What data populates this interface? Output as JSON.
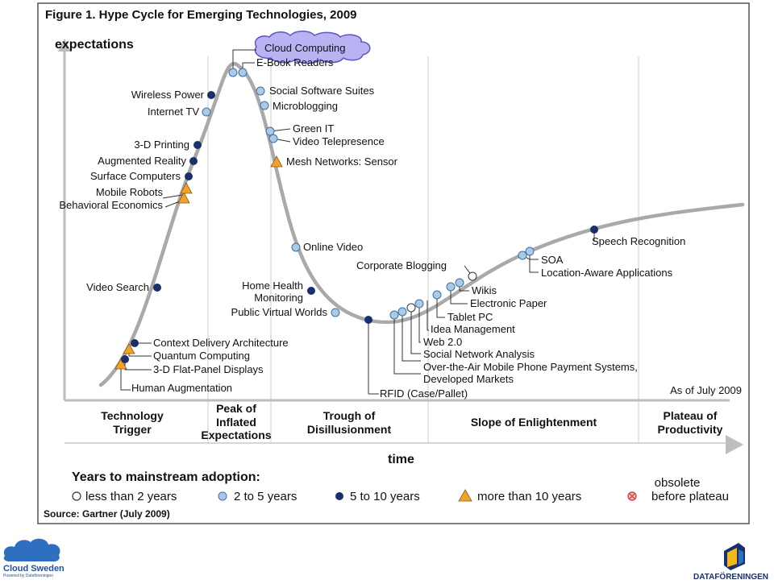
{
  "figure": {
    "title": "Figure 1. Hype Cycle for Emerging Technologies, 2009",
    "y_axis": "expectations",
    "x_axis": "time",
    "as_of": "As of July 2009",
    "source": "Source: Gartner (July 2009)"
  },
  "phases": [
    {
      "lines": [
        "Technology",
        "Trigger"
      ]
    },
    {
      "lines": [
        "Peak of",
        "Inflated",
        "Expectations"
      ]
    },
    {
      "lines": [
        "Trough of",
        "Disillusionment"
      ]
    },
    {
      "lines": [
        "Slope of Enlightenment"
      ]
    },
    {
      "lines": [
        "Plateau of",
        "Productivity"
      ]
    }
  ],
  "legend": {
    "heading": "Years to mainstream adoption:",
    "items": [
      {
        "label": "less than 2 years",
        "marker": "white-circle"
      },
      {
        "label": "2 to 5 years",
        "marker": "light-blue-circle"
      },
      {
        "label": "5 to 10 years",
        "marker": "dark-blue-circle"
      },
      {
        "label": "more than 10 years",
        "marker": "orange-triangle"
      },
      {
        "label_lines": [
          "obsolete",
          "before plateau"
        ],
        "marker": "crossed-circle"
      }
    ]
  },
  "technologies": [
    {
      "name": "Human Augmentation",
      "marker": "orange-triangle"
    },
    {
      "name": "3-D Flat-Panel Displays",
      "marker": "dark-blue-circle"
    },
    {
      "name": "Quantum Computing",
      "marker": "orange-triangle"
    },
    {
      "name": "Context Delivery Architecture",
      "marker": "dark-blue-circle"
    },
    {
      "name": "Video Search",
      "marker": "dark-blue-circle"
    },
    {
      "name": "Behavioral Economics",
      "marker": "orange-triangle"
    },
    {
      "name": "Mobile Robots",
      "marker": "orange-triangle"
    },
    {
      "name": "Surface Computers",
      "marker": "dark-blue-circle"
    },
    {
      "name": "Augmented Reality",
      "marker": "dark-blue-circle"
    },
    {
      "name": "3-D Printing",
      "marker": "dark-blue-circle"
    },
    {
      "name": "Internet TV",
      "marker": "light-blue-circle"
    },
    {
      "name": "Wireless Power",
      "marker": "dark-blue-circle"
    },
    {
      "name": "E-Book Readers",
      "marker": "light-blue-circle"
    },
    {
      "name": "Cloud Computing",
      "marker": "light-blue-circle"
    },
    {
      "name": "Social Software Suites",
      "marker": "light-blue-circle"
    },
    {
      "name": "Microblogging",
      "marker": "light-blue-circle"
    },
    {
      "name": "Green IT",
      "marker": "light-blue-circle"
    },
    {
      "name": "Video Telepresence",
      "marker": "light-blue-circle"
    },
    {
      "name": "Mesh Networks: Sensor",
      "marker": "orange-triangle"
    },
    {
      "name": "Online Video",
      "marker": "light-blue-circle"
    },
    {
      "name_lines": [
        "Home Health",
        "Monitoring"
      ],
      "marker": "dark-blue-circle"
    },
    {
      "name": "Public Virtual Worlds",
      "marker": "light-blue-circle"
    },
    {
      "name": "RFID (Case/Pallet)",
      "marker": "dark-blue-circle"
    },
    {
      "name_lines": [
        "Over-the-Air Mobile Phone Payment Systems,",
        "Developed Markets"
      ],
      "marker": "light-blue-circle"
    },
    {
      "name": "Social Network Analysis",
      "marker": "light-blue-circle"
    },
    {
      "name": "Web 2.0",
      "marker": "white-circle"
    },
    {
      "name": "Idea Management",
      "marker": "light-blue-circle"
    },
    {
      "name": "Tablet PC",
      "marker": "light-blue-circle"
    },
    {
      "name": "Electronic Paper",
      "marker": "light-blue-circle"
    },
    {
      "name": "Wikis",
      "marker": "light-blue-circle"
    },
    {
      "name": "Corporate Blogging",
      "marker": "white-circle"
    },
    {
      "name": "SOA",
      "marker": "light-blue-circle"
    },
    {
      "name": "Location-Aware Applications",
      "marker": "light-blue-circle"
    },
    {
      "name": "Speech Recognition",
      "marker": "dark-blue-circle"
    }
  ],
  "logos": {
    "left": {
      "name": "Cloud Sweden",
      "tagline": "Powered by Dataföreningen"
    },
    "right": {
      "name": "DATAFÖRENINGEN"
    }
  },
  "colors": {
    "curve": "#a9a9a9",
    "dark_blue": "#1a2f6b",
    "light_blue": "#a9cbe8",
    "orange": "#f2a229",
    "cloud_fill": "#b9b4f1",
    "brand_blue": "#1f4e9a"
  }
}
